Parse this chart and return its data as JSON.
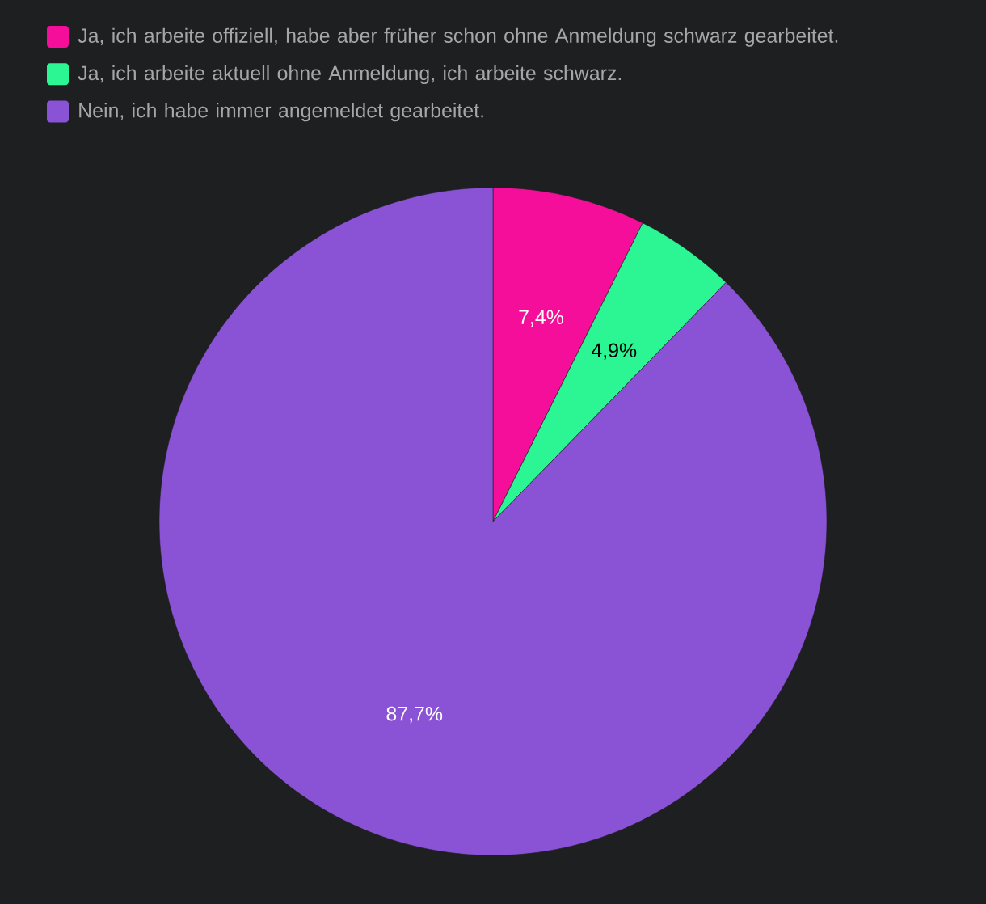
{
  "chart_data": {
    "type": "pie",
    "categories": [
      "Ja, ich arbeite offiziell, habe aber früher schon ohne Anmeldung schwarz gearbeitet.",
      "Ja, ich arbeite aktuell ohne Anmeldung, ich arbeite schwarz.",
      "Nein, ich habe immer angemeldet gearbeitet."
    ],
    "values": [
      7.4,
      4.9,
      87.7
    ],
    "colors": [
      "#f50e99",
      "#2cf593",
      "#8a52d4"
    ],
    "value_labels": [
      "7,4%",
      "4,9%",
      "87,7%"
    ],
    "legend": "top left"
  }
}
